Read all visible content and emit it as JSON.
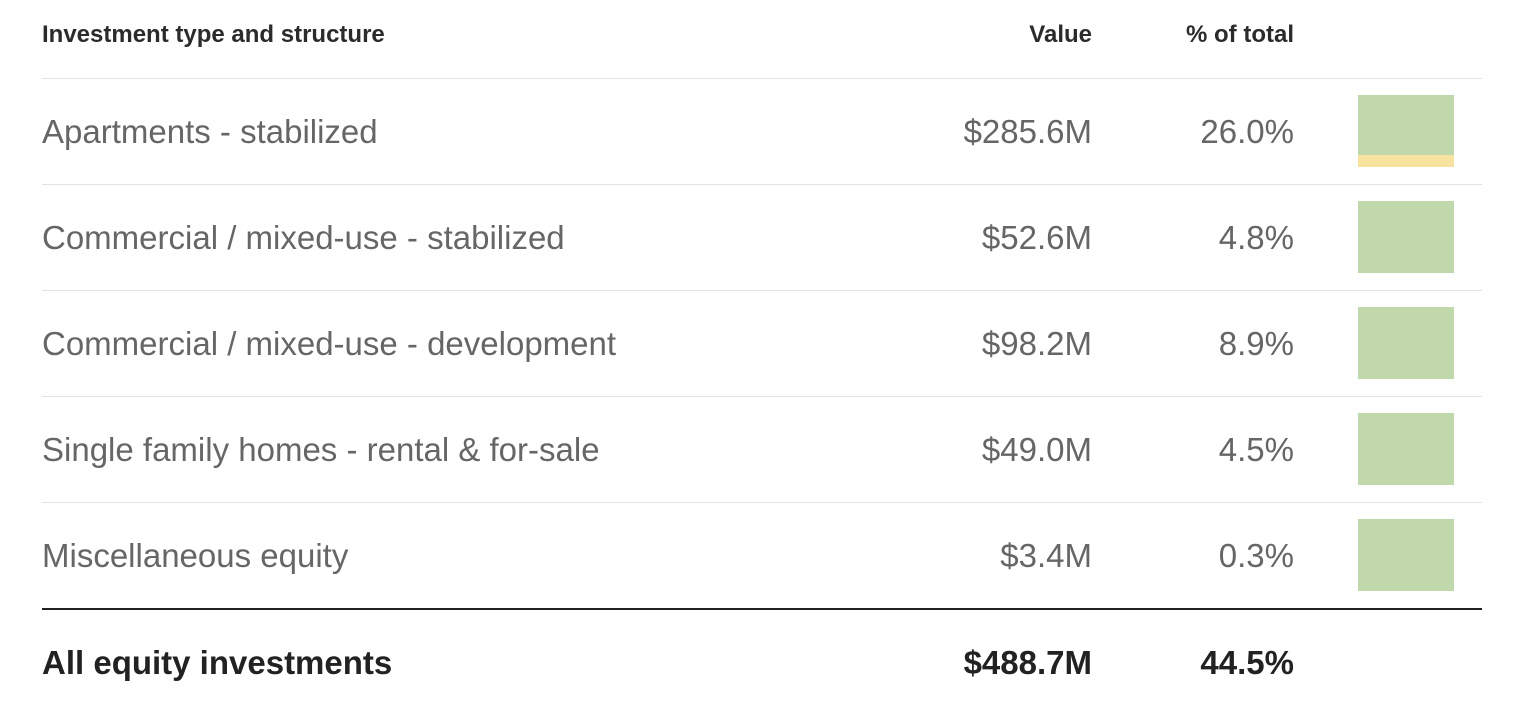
{
  "table": {
    "headers": {
      "type": "Investment type and structure",
      "value": "Value",
      "pct": "% of total"
    },
    "rows": [
      {
        "type": "Apartments - stabilized",
        "value": "$285.6M",
        "pct": "26.0%",
        "bar_under_fraction": 0.17
      },
      {
        "type": "Commercial / mixed-use - stabilized",
        "value": "$52.6M",
        "pct": "4.8%",
        "bar_under_fraction": 0
      },
      {
        "type": "Commercial / mixed-use - development",
        "value": "$98.2M",
        "pct": "8.9%",
        "bar_under_fraction": 0
      },
      {
        "type": "Single family homes - rental & for-sale",
        "value": "$49.0M",
        "pct": "4.5%",
        "bar_under_fraction": 0
      },
      {
        "type": "Miscellaneous equity",
        "value": "$3.4M",
        "pct": "0.3%",
        "bar_under_fraction": 0
      }
    ],
    "total": {
      "type": "All equity investments",
      "value": "$488.7M",
      "pct": "44.5%"
    }
  },
  "colors": {
    "bar_fill": "#c0d8ab",
    "bar_under": "#f7e2a0",
    "total_rule": "#222222"
  }
}
